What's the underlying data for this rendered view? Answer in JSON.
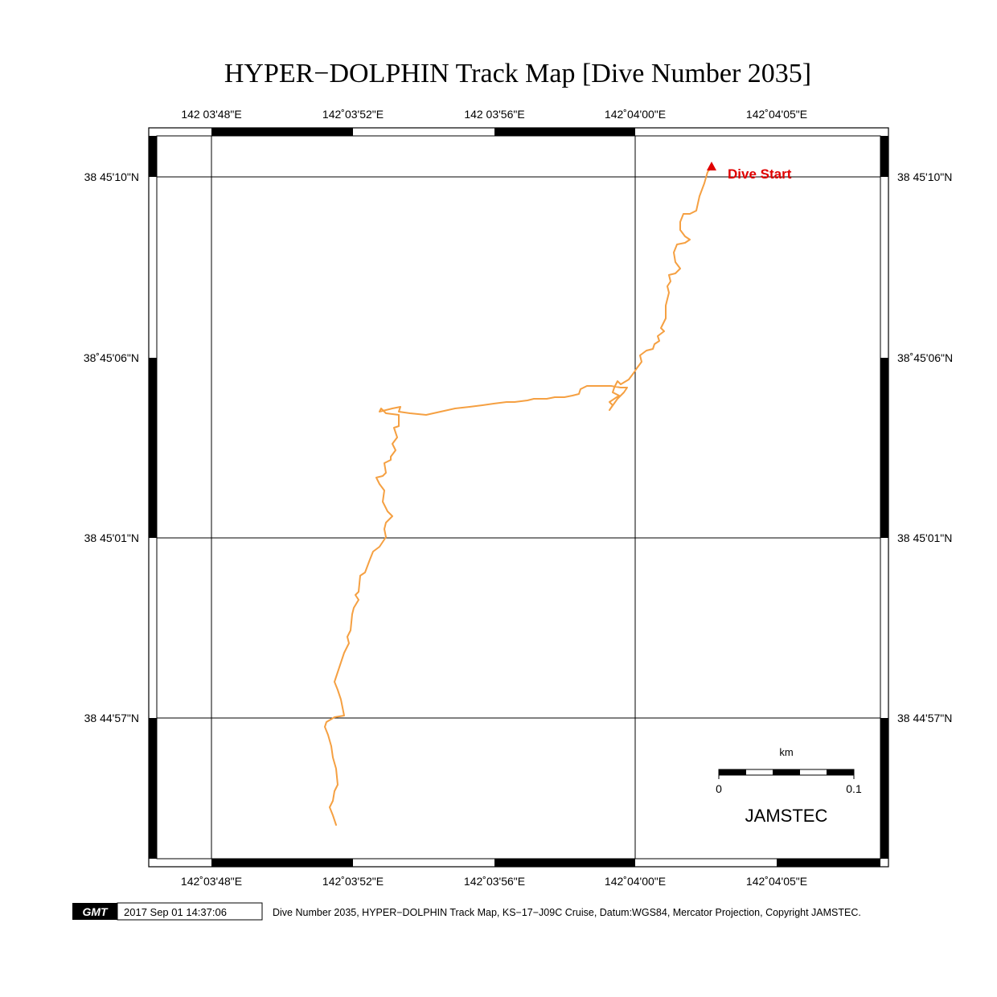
{
  "title": "HYPER−DOLPHIN Track Map [Dive Number 2035]",
  "axes": {
    "top_lon_labels": [
      "142 03'48\"E",
      "142˚03'52\"E",
      "142 03'56\"E",
      "142˚04'00\"E",
      "142˚04'05\"E"
    ],
    "bottom_lon_labels": [
      "142˚03'48\"E",
      "142˚03'52\"E",
      "142˚03'56\"E",
      "142˚04'00\"E",
      "142˚04'05\"E"
    ],
    "left_lat_labels": [
      "38 45'10\"N",
      "38˚45'06\"N",
      "38 45'01\"N",
      "38 44'57\"N"
    ],
    "right_lat_labels": [
      "38 45'10\"N",
      "38˚45'06\"N",
      "38 45'01\"N",
      "38 44'57\"N"
    ]
  },
  "track": {
    "color": "#f5a042",
    "start_label": "Dive Start",
    "start_marker_color": "#e00000"
  },
  "scale_bar": {
    "unit": "km",
    "min_label": "0",
    "max_label": "0.1"
  },
  "credit": "JAMSTEC",
  "footer": {
    "logo": "GMT",
    "timestamp": "2017 Sep 01 14:37:06",
    "caption": "Dive Number 2035, HYPER−DOLPHIN Track Map, KS−17−J09C Cruise, Datum:WGS84, Mercator Projection, Copyright JAMSTEC."
  }
}
